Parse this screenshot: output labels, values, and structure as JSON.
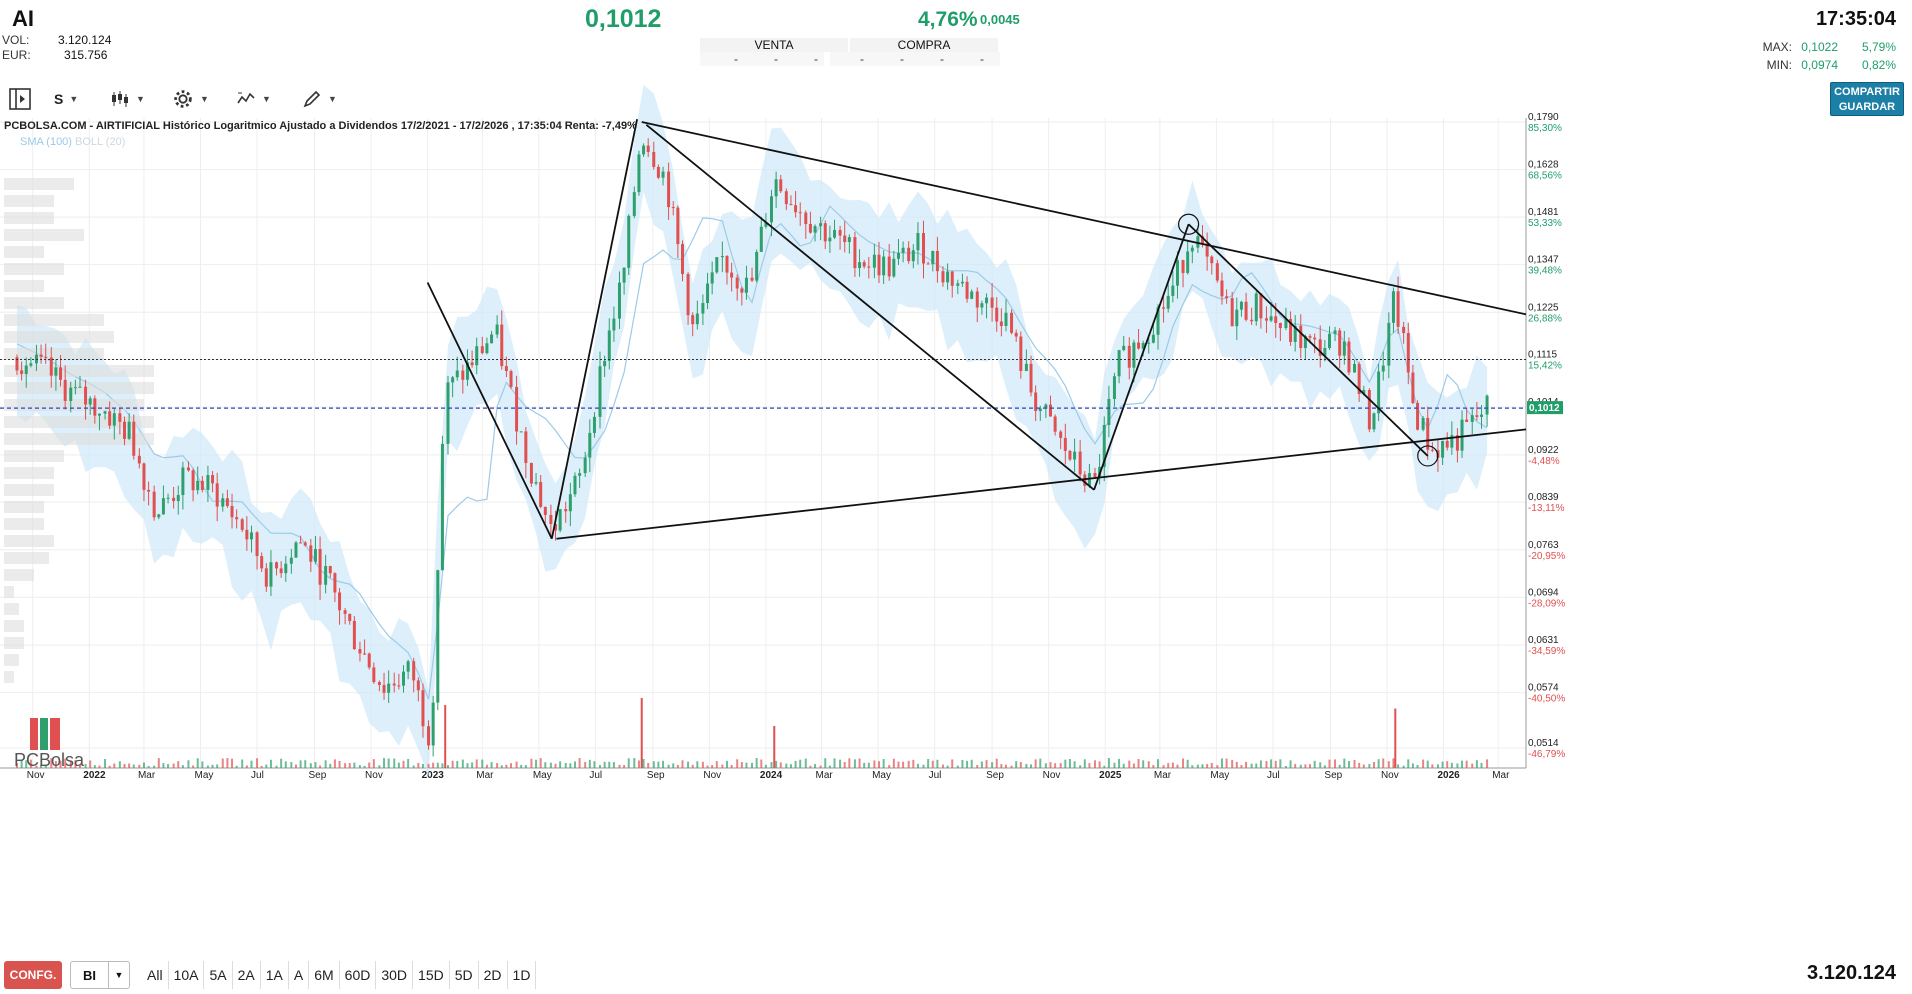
{
  "header": {
    "ticker": "AI",
    "price": "0,1012",
    "change_pct": "4,76%",
    "change_abs": "0,0045",
    "time": "17:35:04",
    "vol_label": "VOL:",
    "vol_value": "3.120.124",
    "eur_label": "EUR:",
    "eur_value": "315.756",
    "venta_label": "VENTA",
    "compra_label": "COMPRA",
    "book_placeholder": "-",
    "max_label": "MAX:",
    "max_value": "0,1022",
    "max_pct": "5,79%",
    "min_label": "MIN:",
    "min_value": "0,0974",
    "min_pct": "0,82%"
  },
  "toolbar": {
    "panel_icon": "panel-toggle-icon",
    "scale_label": "S",
    "chart_type_icon": "candles-icon",
    "settings_icon": "gear-icon",
    "indicators_icon": "indicators-icon",
    "drawing_icon": "pencil-icon",
    "share_line1": "COMPARTIR",
    "share_line2": "GUARDAR"
  },
  "chart_title": "PCBOLSA.COM - AIRTIFICIAL Histórico Logaritmico Ajustado a Dividendos 17/2/2021 - 17/2/2026 , 17:35:04 Renta: -7,49%",
  "legend": {
    "sma": "SMA (100)",
    "boll": "BOLL (20)"
  },
  "logo_text": "PCBolsa",
  "colors": {
    "accent_green": "#1f9e6a",
    "down_red": "#e05050",
    "band_blue": "#cfe8f8",
    "sma_blue": "#9ccbe8",
    "config_red": "#d9534f",
    "share_blue": "#1c7fa6"
  },
  "chart_data": {
    "type": "candlestick",
    "scale": "log",
    "x_range": [
      "2021-10",
      "2026-03"
    ],
    "x_ticks": [
      "Nov",
      "2022",
      "Mar",
      "May",
      "Jul",
      "Sep",
      "Nov",
      "2023",
      "Mar",
      "May",
      "Jul",
      "Sep",
      "Nov",
      "2024",
      "Mar",
      "May",
      "Jul",
      "Sep",
      "Nov",
      "2025",
      "Mar",
      "May",
      "Jul",
      "Sep",
      "Nov",
      "2026",
      "Mar"
    ],
    "y_ticks": [
      {
        "price": "0,1790",
        "pct": "85,30%"
      },
      {
        "price": "0,1628",
        "pct": "68,56%"
      },
      {
        "price": "0,1481",
        "pct": "53,33%"
      },
      {
        "price": "0,1347",
        "pct": "39,48%"
      },
      {
        "price": "0,1225",
        "pct": "26,88%"
      },
      {
        "price": "0,1115",
        "pct": "15,42%"
      },
      {
        "price": "0,1014",
        "pct": ""
      },
      {
        "price": "0,0922",
        "pct": "-4,48%"
      },
      {
        "price": "0,0839",
        "pct": "-13,11%"
      },
      {
        "price": "0,0763",
        "pct": "-20,95%"
      },
      {
        "price": "0,0694",
        "pct": "-28,09%"
      },
      {
        "price": "0,0631",
        "pct": "-34,59%"
      },
      {
        "price": "0,0574",
        "pct": "-40,50%"
      },
      {
        "price": "0,0514",
        "pct": "-46,79%"
      }
    ],
    "last_price_label": "0,1012",
    "reference_level": 0.1115,
    "close_series": [
      [
        "2021-10-15",
        0.112
      ],
      [
        "2021-11-15",
        0.109
      ],
      [
        "2021-12-15",
        0.104
      ],
      [
        "2022-01-15",
        0.101
      ],
      [
        "2022-02-15",
        0.096
      ],
      [
        "2022-03-15",
        0.082
      ],
      [
        "2022-04-15",
        0.088
      ],
      [
        "2022-05-15",
        0.086
      ],
      [
        "2022-06-15",
        0.08
      ],
      [
        "2022-07-15",
        0.072
      ],
      [
        "2022-08-15",
        0.078
      ],
      [
        "2022-09-15",
        0.072
      ],
      [
        "2022-10-15",
        0.064
      ],
      [
        "2022-11-15",
        0.058
      ],
      [
        "2022-12-15",
        0.06
      ],
      [
        "2023-01-05",
        0.052
      ],
      [
        "2023-01-20",
        0.104
      ],
      [
        "2023-02-15",
        0.11
      ],
      [
        "2023-03-15",
        0.118
      ],
      [
        "2023-04-15",
        0.094
      ],
      [
        "2023-05-15",
        0.079
      ],
      [
        "2023-06-15",
        0.088
      ],
      [
        "2023-07-10",
        0.112
      ],
      [
        "2023-08-01",
        0.132
      ],
      [
        "2023-08-20",
        0.176
      ],
      [
        "2023-09-15",
        0.16
      ],
      [
        "2023-10-15",
        0.118
      ],
      [
        "2023-11-15",
        0.136
      ],
      [
        "2023-12-15",
        0.128
      ],
      [
        "2024-01-10",
        0.16
      ],
      [
        "2024-02-15",
        0.148
      ],
      [
        "2024-03-15",
        0.142
      ],
      [
        "2024-04-15",
        0.136
      ],
      [
        "2024-05-15",
        0.134
      ],
      [
        "2024-06-15",
        0.14
      ],
      [
        "2024-07-15",
        0.132
      ],
      [
        "2024-08-15",
        0.126
      ],
      [
        "2024-09-15",
        0.122
      ],
      [
        "2024-10-15",
        0.104
      ],
      [
        "2024-11-15",
        0.094
      ],
      [
        "2024-12-20",
        0.086
      ],
      [
        "2025-01-15",
        0.11
      ],
      [
        "2025-02-15",
        0.118
      ],
      [
        "2025-03-15",
        0.128
      ],
      [
        "2025-04-05",
        0.144
      ],
      [
        "2025-05-15",
        0.122
      ],
      [
        "2025-06-15",
        0.124
      ],
      [
        "2025-07-15",
        0.118
      ],
      [
        "2025-08-15",
        0.114
      ],
      [
        "2025-09-15",
        0.116
      ],
      [
        "2025-10-15",
        0.098
      ],
      [
        "2025-11-10",
        0.126
      ],
      [
        "2025-12-01",
        0.101
      ],
      [
        "2025-12-20",
        0.093
      ],
      [
        "2026-01-15",
        0.095
      ],
      [
        "2026-02-17",
        0.1012
      ]
    ],
    "volume_spikes": [
      [
        "2023-01-20",
        0.9
      ],
      [
        "2023-08-20",
        1.0
      ],
      [
        "2024-01-10",
        0.6
      ],
      [
        "2025-11-10",
        0.85
      ]
    ],
    "trendlines": [
      [
        [
          "2023-08-20",
          0.179
        ],
        [
          "2026-03-31",
          0.122
        ]
      ],
      [
        [
          "2023-05-20",
          0.078
        ],
        [
          "2026-03-31",
          0.097
        ]
      ],
      [
        [
          "2023-01-01",
          0.13
        ],
        [
          "2023-05-15",
          0.078
        ]
      ],
      [
        [
          "2023-05-15",
          0.078
        ],
        [
          "2023-08-15",
          0.18
        ]
      ],
      [
        [
          "2023-08-25",
          0.178
        ],
        [
          "2024-12-20",
          0.086
        ]
      ],
      [
        [
          "2024-12-20",
          0.086
        ],
        [
          "2025-04-01",
          0.146
        ]
      ],
      [
        [
          "2025-04-01",
          0.146
        ],
        [
          "2025-12-15",
          0.092
        ]
      ]
    ],
    "circles": [
      [
        "2025-04-01",
        0.146
      ],
      [
        "2025-12-15",
        0.092
      ]
    ]
  },
  "bottom": {
    "config_label": "CONFG.",
    "interval_value": "BI",
    "ranges": [
      "All",
      "10A",
      "5A",
      "2A",
      "1A",
      "A",
      "6M",
      "60D",
      "30D",
      "15D",
      "5D",
      "2D",
      "1D"
    ],
    "volume_total": "3.120.124"
  }
}
